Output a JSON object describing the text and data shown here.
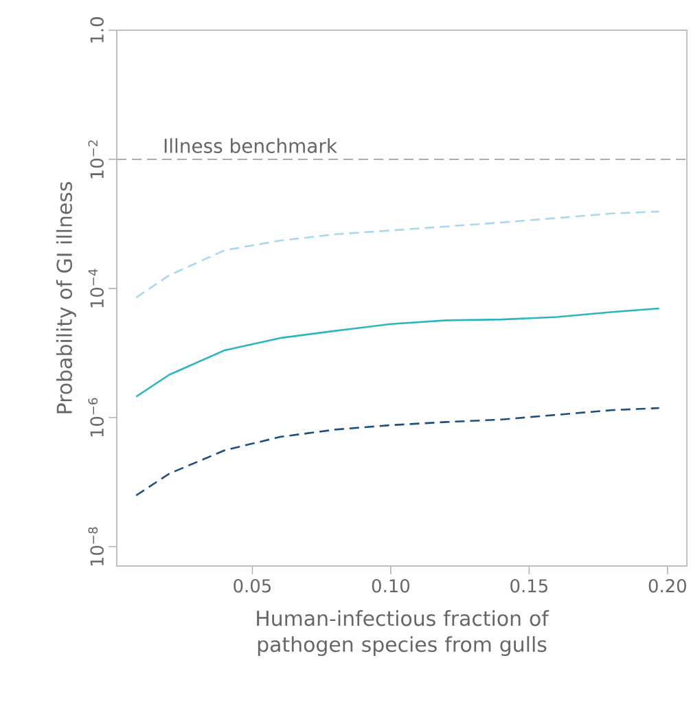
{
  "chart_data": {
    "type": "line",
    "xlabel": "Human-infectious fraction of pathogen species from gulls",
    "ylabel": "Probability of GI illness",
    "log": "y",
    "grid": false,
    "x": [
      0.008,
      0.02,
      0.04,
      0.06,
      0.08,
      0.1,
      0.12,
      0.14,
      0.16,
      0.18,
      0.197
    ],
    "series": [
      {
        "color": "#a8d8f0",
        "line_style": "dashed",
        "values": [
          7.2e-05,
          0.00016,
          0.00039,
          0.00055,
          0.00069,
          0.00079,
          0.00091,
          0.00105,
          0.00123,
          0.00145,
          0.00155
        ]
      },
      {
        "color": "#2ab5c0",
        "line_style": "solid",
        "values": [
          2.1e-06,
          4.6e-06,
          1.1e-05,
          1.7e-05,
          2.2e-05,
          2.8e-05,
          3.2e-05,
          3.3e-05,
          3.6e-05,
          4.3e-05,
          4.9e-05
        ]
      },
      {
        "color": "#1a4f80",
        "line_style": "dashed",
        "values": [
          6.2e-08,
          1.35e-07,
          3.1e-07,
          5e-07,
          6.5e-07,
          7.6e-07,
          8.5e-07,
          9.3e-07,
          1.1e-06,
          1.3e-06,
          1.4e-06
        ]
      }
    ],
    "xlim": [
      0.001,
      0.207
    ],
    "ylim": [
      5e-09,
      1
    ],
    "xticks": [
      {
        "value": 0.05,
        "label": "0.05"
      },
      {
        "value": 0.1,
        "label": "0.10"
      },
      {
        "value": 0.15,
        "label": "0.15"
      },
      {
        "value": 0.2,
        "label": "0.20"
      }
    ],
    "yticks": [
      {
        "value": 1e-08,
        "label": "10$^{−8}$"
      },
      {
        "value": 1e-06,
        "label": "10$^{−6}$"
      },
      {
        "value": 0.0001,
        "label": "10$^{−4}$"
      },
      {
        "value": 0.01,
        "label": "10$^{−2}$"
      },
      {
        "value": 1,
        "label": "1.0"
      }
    ],
    "ref_lines": [
      {
        "axis": "y",
        "value": 0.01,
        "label": "Illness benchmark",
        "color": "#aaaaaa",
        "line_style": "dashed"
      }
    ]
  }
}
